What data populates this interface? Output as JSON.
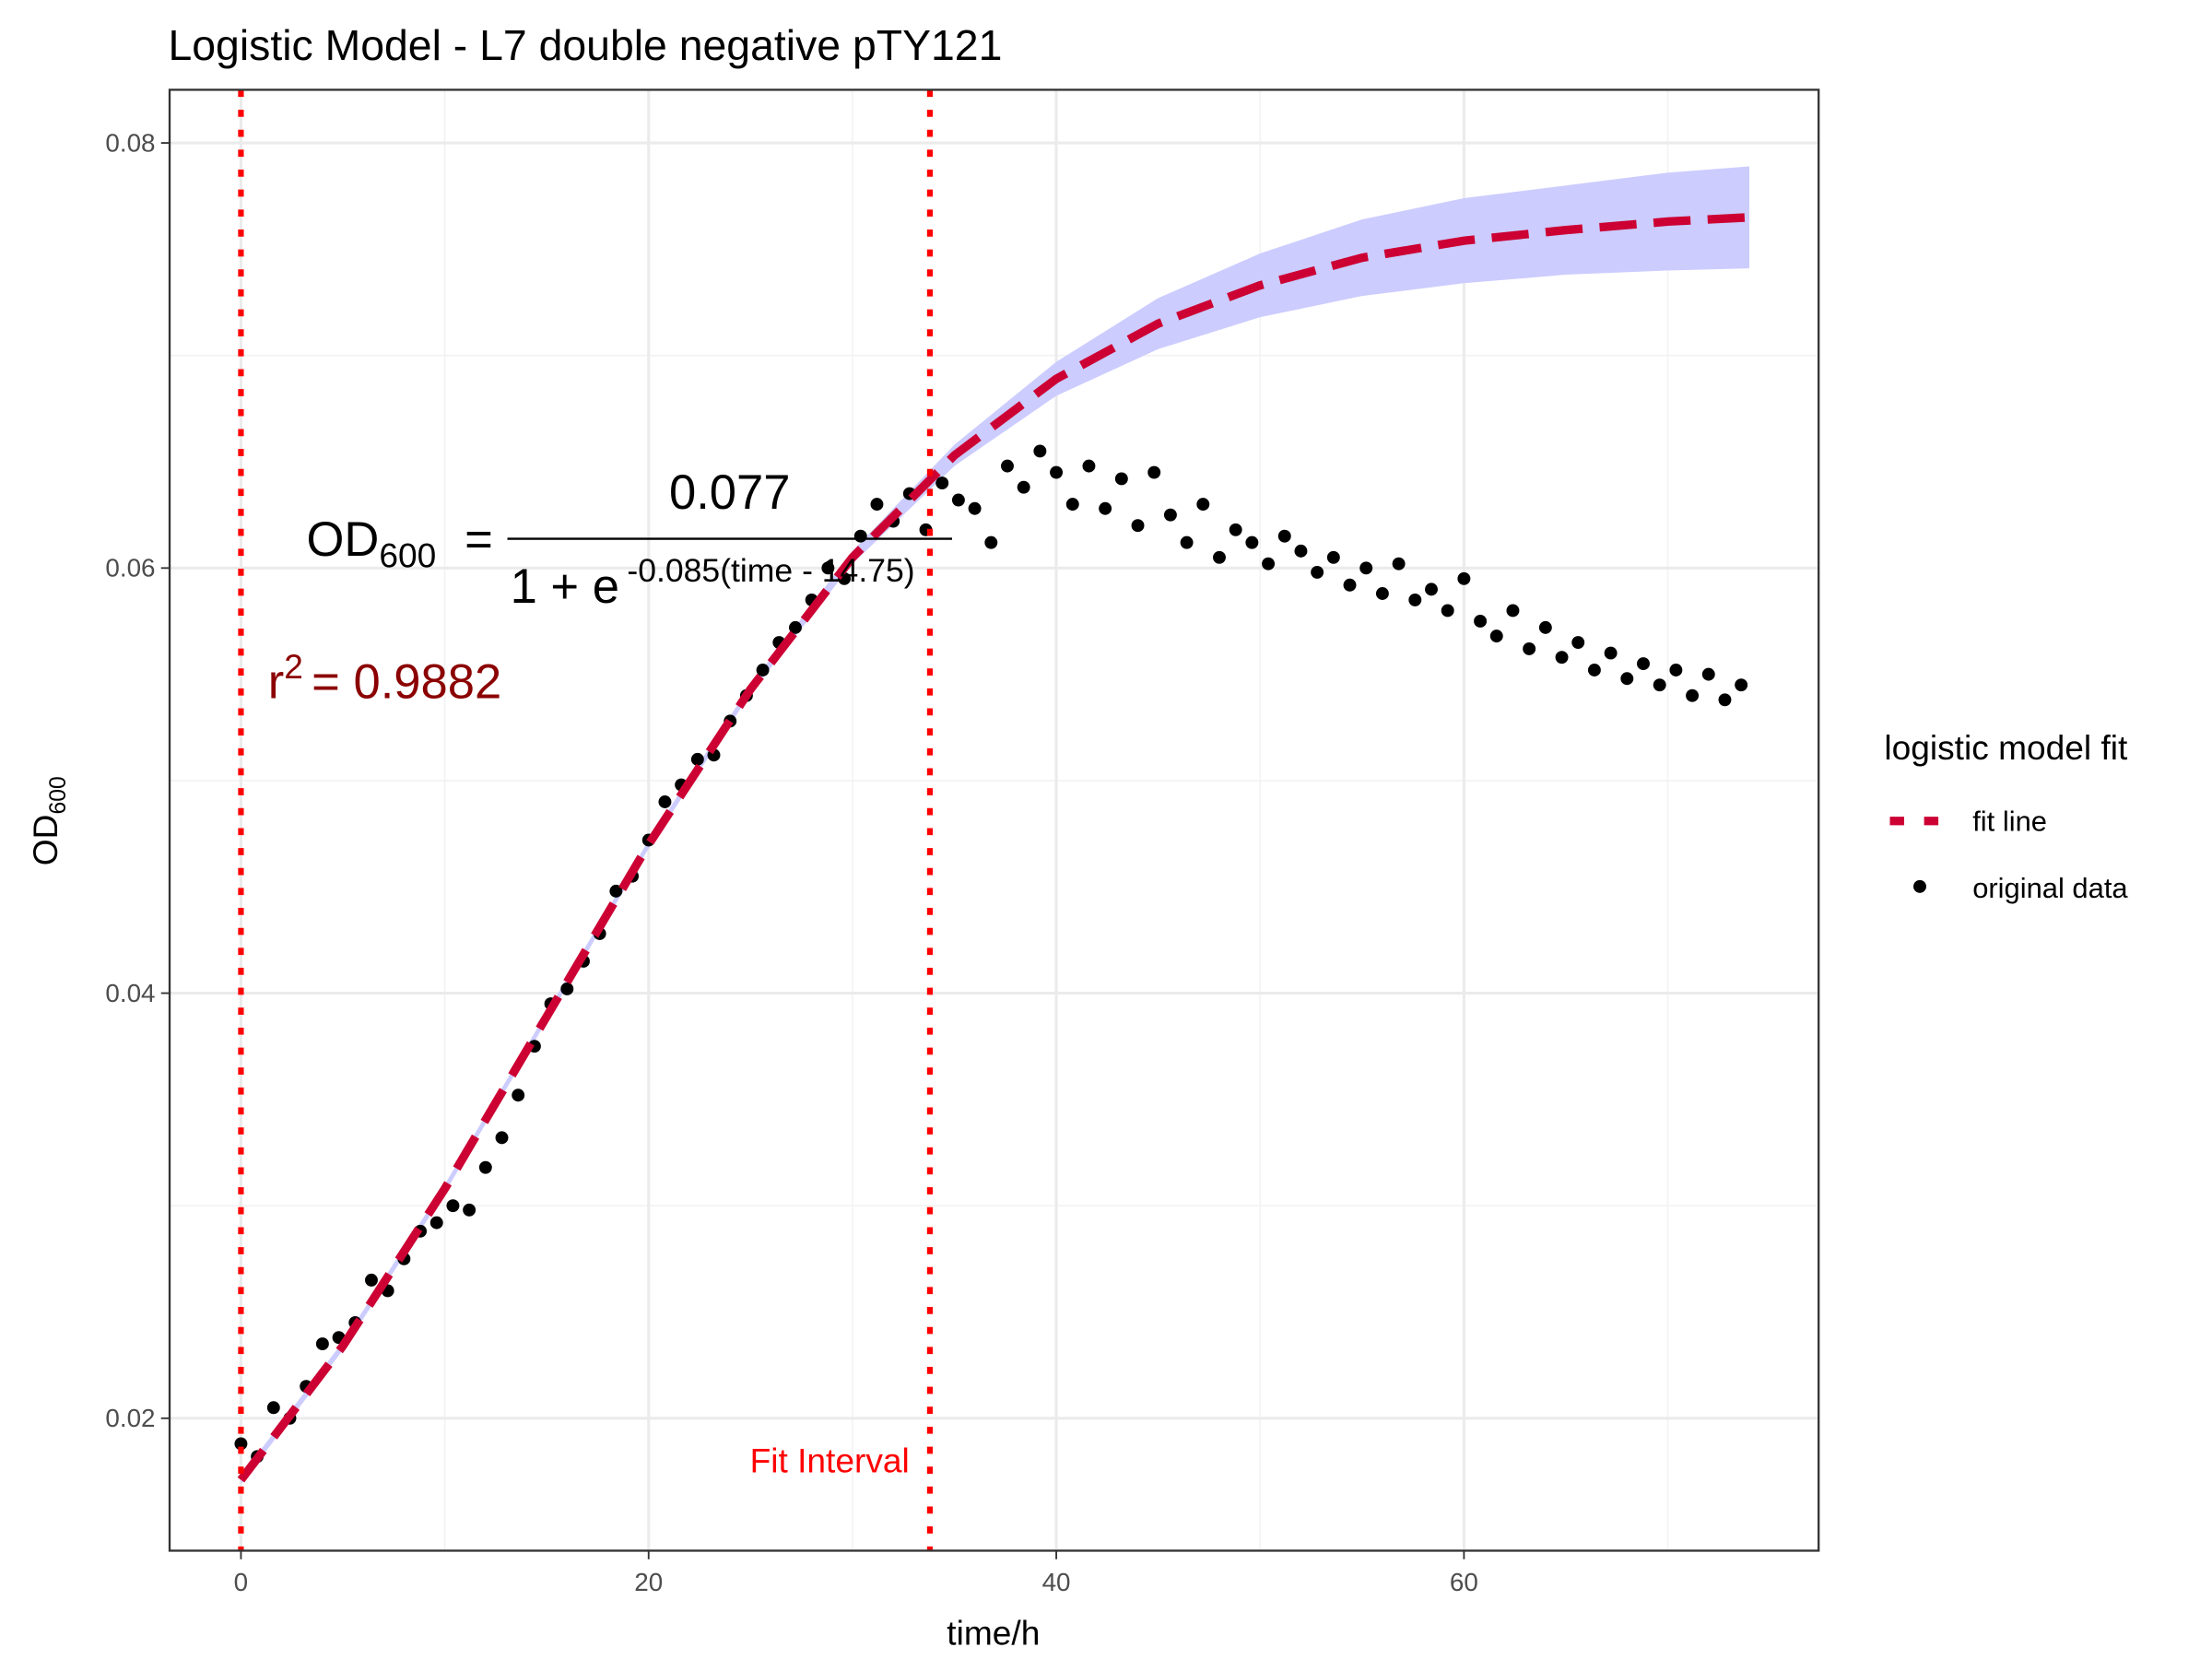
{
  "chart_data": {
    "type": "scatter",
    "title": "Logistic Model -  L7 double negative pTY121",
    "x_label": "time/h",
    "y_label": {
      "main": "OD",
      "sub": "600"
    },
    "xlim": [
      -3.5,
      77.4
    ],
    "ylim": [
      0.01377,
      0.0825
    ],
    "xticks": [
      0,
      20,
      40,
      60
    ],
    "yticks": [
      0.02,
      0.04,
      0.06,
      0.08
    ],
    "xminor": [
      10,
      30,
      50,
      70
    ],
    "yminor": [
      0.03,
      0.05,
      0.07
    ],
    "grid": true,
    "legend": {
      "title": "logistic model fit",
      "position": "right"
    },
    "vlines": {
      "values": [
        0,
        33.8
      ],
      "color": "#ff0000"
    },
    "annotation": {
      "text": "Fit Interval",
      "x": 32.8,
      "y": 0.018,
      "color": "#ff0000"
    },
    "equation": {
      "lhs": "OD",
      "lhs_sub": "600",
      "equals": "=",
      "numerator": "0.077",
      "denominator": "1 + e",
      "exponent": "-0.085(time - 14.75)"
    },
    "r_squared": {
      "symbol": "r",
      "power": "2",
      "text": "= 0.9882",
      "color": "#8b0000"
    },
    "series": [
      {
        "name": "fit line",
        "color": "#cc0033",
        "band_color": "#ccccff",
        "x": [
          0,
          5,
          10,
          15,
          20,
          25,
          30,
          35,
          40,
          45,
          50,
          55,
          60,
          65,
          70,
          74
        ],
        "values": [
          0.0171,
          0.0234,
          0.0308,
          0.0389,
          0.047,
          0.0543,
          0.0605,
          0.0653,
          0.0689,
          0.0715,
          0.0733,
          0.0746,
          0.0754,
          0.0759,
          0.0763,
          0.0765
        ],
        "lower": [
          0.0169,
          0.0232,
          0.0306,
          0.0387,
          0.0468,
          0.0541,
          0.0602,
          0.0648,
          0.0681,
          0.0703,
          0.0718,
          0.0728,
          0.0734,
          0.0738,
          0.074,
          0.0741
        ],
        "upper": [
          0.0173,
          0.0236,
          0.031,
          0.0391,
          0.0472,
          0.0545,
          0.0608,
          0.0658,
          0.0697,
          0.0727,
          0.0748,
          0.0764,
          0.0774,
          0.078,
          0.0786,
          0.0789
        ]
      },
      {
        "name": "original data",
        "color": "#000000",
        "x": [
          0,
          0.8,
          1.6,
          2.4,
          3.2,
          4.0,
          4.8,
          5.6,
          6.4,
          7.2,
          8.0,
          8.8,
          9.6,
          10.4,
          11.2,
          12.0,
          12.8,
          13.6,
          14.4,
          15.2,
          16.0,
          16.8,
          17.6,
          18.4,
          19.2,
          20.0,
          20.8,
          21.6,
          22.4,
          23.2,
          24.0,
          24.8,
          25.6,
          26.4,
          27.2,
          28.0,
          28.8,
          29.6,
          30.4,
          31.2,
          32.0,
          32.8,
          33.6,
          34.4,
          35.2,
          36.0,
          36.8,
          37.6,
          38.4,
          39.2,
          40.0,
          40.8,
          41.6,
          42.4,
          43.2,
          44.0,
          44.8,
          45.6,
          46.4,
          47.2,
          48.0,
          48.8,
          49.6,
          50.4,
          51.2,
          52.0,
          52.8,
          53.6,
          54.4,
          55.2,
          56.0,
          56.8,
          57.6,
          58.4,
          59.2,
          60.0,
          60.8,
          61.6,
          62.4,
          63.2,
          64.0,
          64.8,
          65.6,
          66.4,
          67.2,
          68.0,
          68.8,
          69.6,
          70.4,
          71.2,
          72.0,
          72.8,
          73.6
        ],
        "values": [
          0.0188,
          0.0182,
          0.0205,
          0.02,
          0.0215,
          0.0235,
          0.0238,
          0.0245,
          0.0265,
          0.026,
          0.0275,
          0.0288,
          0.0292,
          0.03,
          0.0298,
          0.0318,
          0.0332,
          0.0352,
          0.0375,
          0.0395,
          0.0402,
          0.0415,
          0.0428,
          0.0448,
          0.0455,
          0.0472,
          0.049,
          0.0498,
          0.051,
          0.0512,
          0.0528,
          0.054,
          0.0552,
          0.0565,
          0.0572,
          0.0585,
          0.06,
          0.0595,
          0.0615,
          0.063,
          0.0622,
          0.0635,
          0.0618,
          0.064,
          0.0632,
          0.0628,
          0.0612,
          0.0648,
          0.0638,
          0.0655,
          0.0645,
          0.063,
          0.0648,
          0.0628,
          0.0642,
          0.062,
          0.0645,
          0.0625,
          0.0612,
          0.063,
          0.0605,
          0.0618,
          0.0612,
          0.0602,
          0.0615,
          0.0608,
          0.0598,
          0.0605,
          0.0592,
          0.06,
          0.0588,
          0.0602,
          0.0585,
          0.059,
          0.058,
          0.0595,
          0.0575,
          0.0568,
          0.058,
          0.0562,
          0.0572,
          0.0558,
          0.0565,
          0.0552,
          0.056,
          0.0548,
          0.0555,
          0.0545,
          0.0552,
          0.054,
          0.055,
          0.0538,
          0.0545
        ]
      }
    ]
  }
}
